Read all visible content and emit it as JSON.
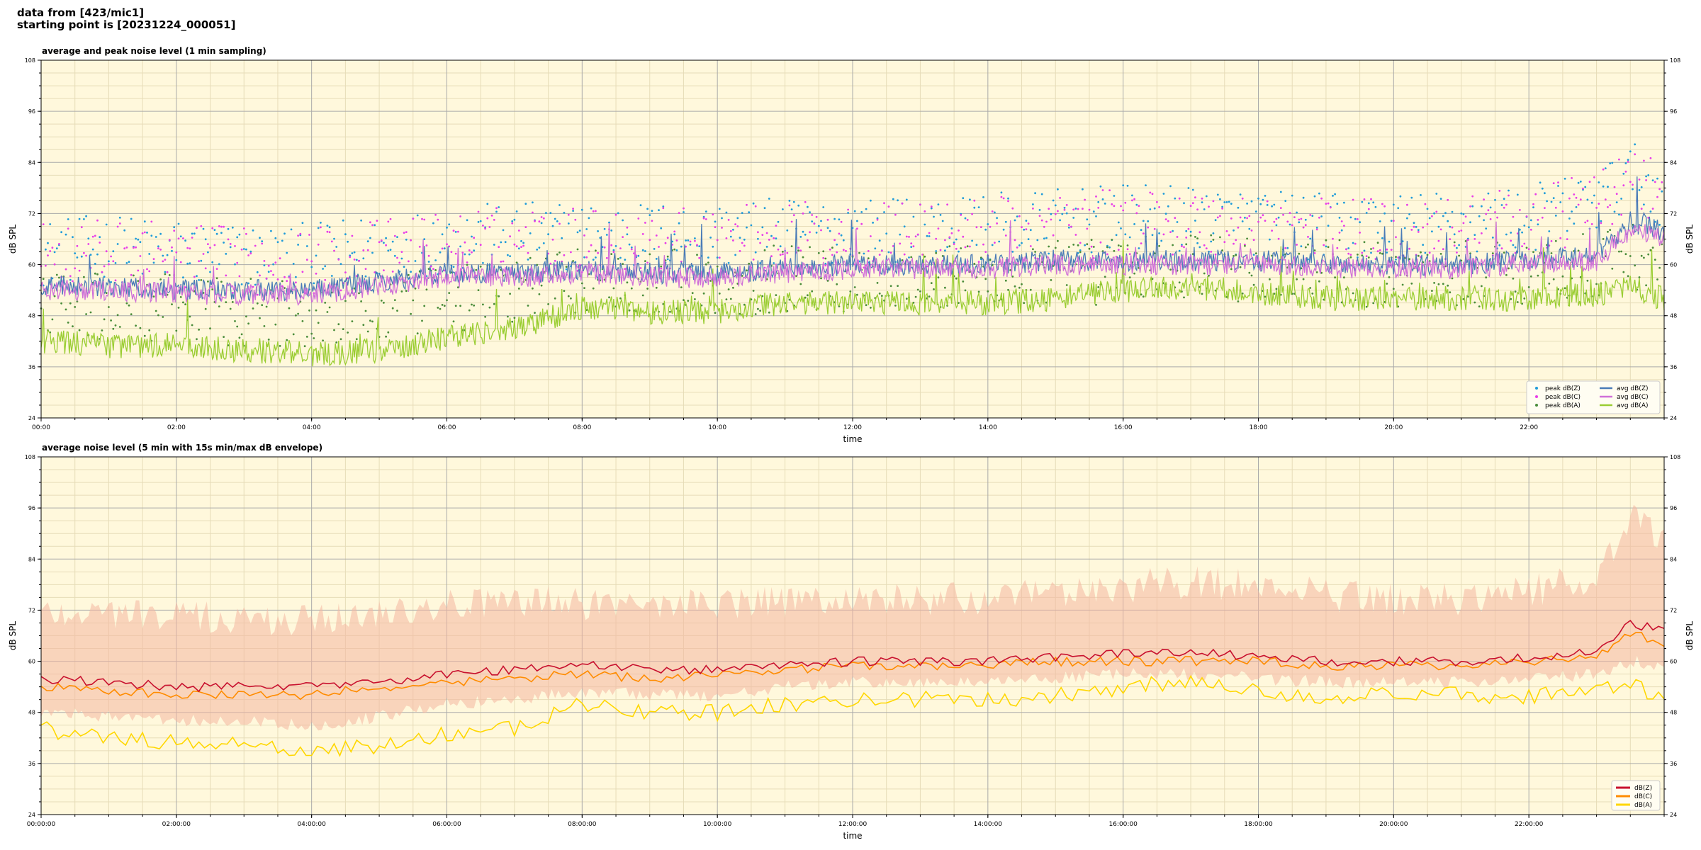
{
  "header": {
    "line1": "data from [423/mic1]",
    "line2": "starting point is [20231224_000051]"
  },
  "colors": {
    "background": "#fff8dc",
    "grid_major": "#aaaaaa",
    "grid_minor": "#e6dcb8",
    "peak_z": "#1f9bd9",
    "peak_c": "#e83ee8",
    "peak_a": "#4a8c3a",
    "avg_z": "#4a7bb7",
    "avg_c": "#d070d8",
    "avg_a": "#9acd32",
    "dbz": "#c8102e",
    "dbc": "#ff8c00",
    "dba": "#ffd700",
    "envelope": "#f4b6a0"
  },
  "chart_data": [
    {
      "type": "line",
      "title": "average and peak noise level (1 min sampling)",
      "xlabel": "time",
      "ylabel": "dB SPL",
      "ylabel_right": "dB SPL",
      "ylim": [
        24,
        108
      ],
      "yticks": [
        "24",
        "36",
        "48",
        "60",
        "72",
        "84",
        "96",
        "108"
      ],
      "xlim_hours": [
        0,
        24
      ],
      "xticks": [
        "00:00",
        "02:00",
        "04:00",
        "06:00",
        "08:00",
        "10:00",
        "12:00",
        "14:00",
        "16:00",
        "18:00",
        "20:00",
        "22:00"
      ],
      "grid": true,
      "legend_position": "bottom-right",
      "legend": [
        {
          "label": "peak dB(Z)",
          "kind": "dot",
          "color": "#1f9bd9"
        },
        {
          "label": "peak dB(C)",
          "kind": "dot",
          "color": "#e83ee8"
        },
        {
          "label": "peak dB(A)",
          "kind": "dot",
          "color": "#4a8c3a"
        },
        {
          "label": "avg dB(Z)",
          "kind": "line",
          "color": "#4a7bb7"
        },
        {
          "label": "avg dB(C)",
          "kind": "line",
          "color": "#d070d8"
        },
        {
          "label": "avg dB(A)",
          "kind": "line",
          "color": "#9acd32"
        }
      ],
      "x_hours": [
        0,
        1,
        2,
        3,
        4,
        5,
        6,
        7,
        8,
        9,
        10,
        11,
        12,
        13,
        14,
        15,
        16,
        17,
        18,
        19,
        20,
        21,
        22,
        23,
        23.5,
        24
      ],
      "series": [
        {
          "name": "avg dB(Z)",
          "values": [
            55,
            55,
            54,
            54,
            54,
            56,
            58,
            58,
            59,
            58,
            58,
            59,
            60,
            60,
            60,
            61,
            61,
            61,
            61,
            60,
            60,
            60,
            61,
            62,
            70,
            68
          ]
        },
        {
          "name": "avg dB(C)",
          "values": [
            54,
            54,
            53,
            53,
            53,
            55,
            57,
            57,
            58,
            57,
            57,
            58,
            59,
            59,
            59,
            60,
            60,
            60,
            60,
            59,
            59,
            59,
            60,
            61,
            68,
            66
          ]
        },
        {
          "name": "avg dB(A)",
          "values": [
            42,
            41,
            41,
            40,
            39,
            40,
            43,
            45,
            50,
            49,
            49,
            51,
            51,
            51,
            51,
            52,
            54,
            55,
            53,
            52,
            52,
            52,
            52,
            53,
            55,
            52
          ]
        },
        {
          "name": "peak dB(Z)",
          "values": [
            62,
            63,
            62,
            61,
            61,
            63,
            65,
            66,
            66,
            66,
            66,
            67,
            67,
            67,
            68,
            69,
            70,
            70,
            69,
            68,
            68,
            69,
            70,
            74,
            80,
            76
          ]
        },
        {
          "name": "peak dB(C)",
          "values": [
            61,
            62,
            61,
            60,
            60,
            62,
            64,
            65,
            65,
            65,
            65,
            66,
            66,
            66,
            67,
            68,
            69,
            69,
            68,
            67,
            67,
            68,
            69,
            73,
            79,
            75
          ]
        },
        {
          "name": "peak dB(A)",
          "values": [
            50,
            49,
            49,
            48,
            47,
            48,
            51,
            53,
            56,
            55,
            55,
            56,
            56,
            56,
            56,
            57,
            58,
            59,
            58,
            57,
            57,
            57,
            58,
            59,
            62,
            58
          ]
        }
      ]
    },
    {
      "type": "area",
      "title": "average noise level (5 min with 15s min/max dB envelope)",
      "xlabel": "time",
      "ylabel": "dB SPL",
      "ylabel_right": "dB SPL",
      "ylim": [
        24,
        108
      ],
      "yticks": [
        "24",
        "36",
        "48",
        "60",
        "72",
        "84",
        "96",
        "108"
      ],
      "xlim_hours": [
        0,
        24
      ],
      "xticks": [
        "00:00:00",
        "02:00:00",
        "04:00:00",
        "06:00:00",
        "08:00:00",
        "10:00:00",
        "12:00:00",
        "14:00:00",
        "16:00:00",
        "18:00:00",
        "20:00:00",
        "22:00:00"
      ],
      "grid": true,
      "legend_position": "bottom-right",
      "legend": [
        {
          "label": "dB(Z)",
          "kind": "line",
          "color": "#c8102e"
        },
        {
          "label": "dB(C)",
          "kind": "line",
          "color": "#ff8c00"
        },
        {
          "label": "dB(A)",
          "kind": "line",
          "color": "#ffd700"
        }
      ],
      "x_hours": [
        0,
        1,
        2,
        3,
        4,
        5,
        6,
        7,
        8,
        9,
        10,
        11,
        12,
        13,
        14,
        15,
        16,
        17,
        18,
        19,
        20,
        21,
        22,
        23,
        23.5,
        24
      ],
      "series": [
        {
          "name": "dB(Z)",
          "values": [
            56,
            55,
            54,
            54,
            54,
            55,
            57,
            58,
            59,
            58,
            58,
            59,
            60,
            60,
            60,
            61,
            62,
            62,
            61,
            60,
            60,
            60,
            61,
            62,
            69,
            67
          ]
        },
        {
          "name": "dB(C)",
          "values": [
            54,
            53,
            52,
            52,
            52,
            54,
            55,
            56,
            57,
            56,
            57,
            58,
            59,
            59,
            59,
            60,
            60,
            60,
            60,
            59,
            59,
            59,
            60,
            61,
            67,
            64
          ]
        },
        {
          "name": "dB(A)",
          "values": [
            44,
            42,
            41,
            40,
            39,
            40,
            43,
            44,
            50,
            48,
            48,
            50,
            51,
            51,
            51,
            52,
            54,
            55,
            53,
            52,
            52,
            52,
            52,
            53,
            55,
            50
          ]
        }
      ],
      "envelope": {
        "upper": [
          70,
          70,
          69,
          68,
          68,
          70,
          72,
          72,
          72,
          72,
          72,
          72,
          73,
          73,
          73,
          74,
          76,
          77,
          76,
          74,
          73,
          73,
          75,
          78,
          92,
          86
        ],
        "lower": [
          48,
          47,
          46,
          46,
          45,
          47,
          50,
          51,
          53,
          52,
          52,
          54,
          55,
          55,
          55,
          56,
          57,
          57,
          56,
          55,
          55,
          55,
          56,
          57,
          60,
          59
        ]
      }
    }
  ]
}
